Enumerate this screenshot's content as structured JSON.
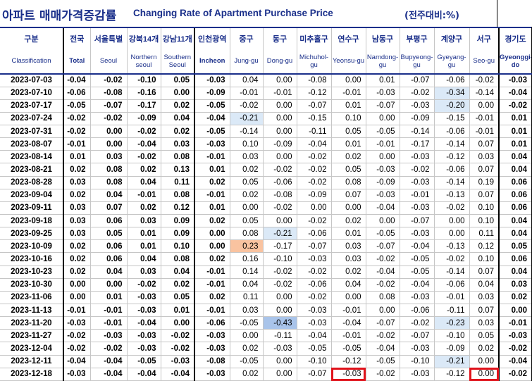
{
  "title": {
    "korean": "아파트 매매가격증감률",
    "english": "Changing Rate of Apartment Purchase Price",
    "unit": "(전주대비:%)"
  },
  "header": {
    "row1": [
      "구분",
      "전국",
      "서울특별",
      "강북14개",
      "강남11개",
      "인천광역",
      "중구",
      "동구",
      "미추홀구",
      "연수구",
      "남동구",
      "부평구",
      "계양구",
      "서구",
      "경기도"
    ],
    "row2": [
      "Classification",
      "Total",
      "Seoul",
      "Northern seoul",
      "Southern Seoul",
      "Incheon",
      "Jung-gu",
      "Dong-gu",
      "Michuhol-gu",
      "Yeonsu-gu",
      "Namdong-gu",
      "Bupyeong-gu",
      "Gyeyang-gu",
      "Seo-gu",
      "Gyeonggi-do"
    ]
  },
  "rows": [
    {
      "date": "2023-07-03",
      "values": [
        "-0.04",
        "-0.02",
        "-0.10",
        "0.05",
        "-0.03",
        "0.04",
        "0.00",
        "-0.08",
        "0.00",
        "0.01",
        "-0.07",
        "-0.06",
        "-0.02",
        "-0.03"
      ]
    },
    {
      "date": "2023-07-10",
      "values": [
        "-0.06",
        "-0.08",
        "-0.16",
        "0.00",
        "-0.09",
        "-0.01",
        "-0.01",
        "-0.12",
        "-0.01",
        "-0.03",
        "-0.02",
        "-0.34",
        "-0.14",
        "-0.04"
      ]
    },
    {
      "date": "2023-07-17",
      "values": [
        "-0.05",
        "-0.07",
        "-0.17",
        "0.02",
        "-0.05",
        "-0.02",
        "0.00",
        "-0.07",
        "0.01",
        "-0.07",
        "-0.03",
        "-0.20",
        "0.00",
        "-0.02"
      ]
    },
    {
      "date": "2023-07-24",
      "values": [
        "-0.02",
        "-0.02",
        "-0.09",
        "0.04",
        "-0.04",
        "-0.21",
        "0.00",
        "-0.15",
        "0.10",
        "0.00",
        "-0.09",
        "-0.15",
        "-0.01",
        "0.01"
      ]
    },
    {
      "date": "2023-07-31",
      "values": [
        "-0.02",
        "0.00",
        "-0.02",
        "0.02",
        "-0.05",
        "-0.14",
        "0.00",
        "-0.11",
        "0.05",
        "-0.05",
        "-0.14",
        "-0.06",
        "-0.01",
        "0.01"
      ]
    },
    {
      "date": "2023-08-07",
      "values": [
        "-0.01",
        "0.00",
        "-0.04",
        "0.03",
        "-0.03",
        "0.10",
        "-0.09",
        "-0.04",
        "0.01",
        "-0.01",
        "-0.17",
        "-0.14",
        "0.07",
        "0.01"
      ]
    },
    {
      "date": "2023-08-14",
      "values": [
        "0.01",
        "0.03",
        "-0.02",
        "0.08",
        "-0.01",
        "0.03",
        "0.00",
        "-0.02",
        "0.02",
        "0.00",
        "-0.03",
        "-0.12",
        "0.03",
        "0.04"
      ]
    },
    {
      "date": "2023-08-21",
      "values": [
        "0.02",
        "0.08",
        "0.02",
        "0.13",
        "0.01",
        "0.02",
        "-0.02",
        "-0.02",
        "0.05",
        "-0.03",
        "-0.02",
        "-0.06",
        "0.07",
        "0.04"
      ]
    },
    {
      "date": "2023-08-28",
      "values": [
        "0.03",
        "0.08",
        "0.04",
        "0.11",
        "0.02",
        "0.05",
        "-0.06",
        "-0.02",
        "0.08",
        "-0.09",
        "-0.03",
        "-0.14",
        "0.19",
        "0.06"
      ]
    },
    {
      "date": "2023-09-04",
      "values": [
        "0.02",
        "0.04",
        "-0.01",
        "0.08",
        "-0.01",
        "0.02",
        "-0.08",
        "-0.09",
        "0.07",
        "-0.03",
        "-0.01",
        "-0.13",
        "0.07",
        "0.06"
      ]
    },
    {
      "date": "2023-09-11",
      "values": [
        "0.03",
        "0.07",
        "0.02",
        "0.12",
        "0.01",
        "0.00",
        "-0.02",
        "0.00",
        "0.00",
        "-0.04",
        "-0.03",
        "-0.02",
        "0.10",
        "0.06"
      ]
    },
    {
      "date": "2023-09-18",
      "values": [
        "0.03",
        "0.06",
        "0.03",
        "0.09",
        "0.02",
        "0.05",
        "0.00",
        "-0.02",
        "0.02",
        "0.00",
        "-0.07",
        "0.00",
        "0.10",
        "0.04"
      ]
    },
    {
      "date": "2023-09-25",
      "values": [
        "0.03",
        "0.05",
        "0.01",
        "0.09",
        "0.00",
        "0.08",
        "-0.21",
        "-0.06",
        "0.01",
        "-0.05",
        "-0.03",
        "0.00",
        "0.11",
        "0.04"
      ]
    },
    {
      "date": "2023-10-09",
      "values": [
        "0.02",
        "0.06",
        "0.01",
        "0.10",
        "0.00",
        "0.23",
        "-0.17",
        "-0.07",
        "0.03",
        "-0.07",
        "-0.04",
        "-0.13",
        "0.12",
        "0.05"
      ]
    },
    {
      "date": "2023-10-16",
      "values": [
        "0.02",
        "0.06",
        "0.04",
        "0.08",
        "0.02",
        "0.16",
        "-0.10",
        "-0.03",
        "0.03",
        "-0.02",
        "-0.05",
        "-0.02",
        "0.10",
        "0.06"
      ]
    },
    {
      "date": "2023-10-23",
      "values": [
        "0.02",
        "0.04",
        "0.03",
        "0.04",
        "-0.01",
        "0.14",
        "-0.02",
        "-0.02",
        "0.02",
        "-0.04",
        "-0.05",
        "-0.14",
        "0.07",
        "0.04"
      ]
    },
    {
      "date": "2023-10-30",
      "values": [
        "0.00",
        "0.00",
        "-0.02",
        "0.02",
        "-0.01",
        "0.04",
        "-0.02",
        "-0.06",
        "0.04",
        "-0.02",
        "-0.04",
        "-0.06",
        "0.04",
        "0.03"
      ]
    },
    {
      "date": "2023-11-06",
      "values": [
        "0.00",
        "0.01",
        "-0.03",
        "0.05",
        "0.02",
        "0.11",
        "0.00",
        "-0.02",
        "0.00",
        "0.08",
        "-0.03",
        "-0.01",
        "0.03",
        "0.02"
      ]
    },
    {
      "date": "2023-11-13",
      "values": [
        "-0.01",
        "-0.01",
        "-0.03",
        "0.01",
        "-0.01",
        "0.03",
        "0.00",
        "-0.03",
        "-0.01",
        "0.00",
        "-0.06",
        "-0.11",
        "0.07",
        "0.00"
      ]
    },
    {
      "date": "2023-11-20",
      "values": [
        "-0.03",
        "-0.01",
        "-0.04",
        "0.00",
        "-0.06",
        "-0.05",
        "-0.43",
        "-0.03",
        "-0.04",
        "-0.07",
        "-0.02",
        "-0.23",
        "0.03",
        "-0.01"
      ]
    },
    {
      "date": "2023-11-27",
      "values": [
        "-0.02",
        "-0.03",
        "-0.03",
        "-0.02",
        "-0.03",
        "0.00",
        "-0.11",
        "-0.04",
        "-0.01",
        "-0.02",
        "-0.07",
        "-0.10",
        "0.05",
        "-0.03"
      ]
    },
    {
      "date": "2023-12-04",
      "values": [
        "-0.02",
        "-0.02",
        "-0.03",
        "-0.02",
        "-0.03",
        "0.02",
        "-0.03",
        "-0.05",
        "-0.05",
        "-0.04",
        "-0.03",
        "-0.09",
        "0.02",
        "-0.02"
      ]
    },
    {
      "date": "2023-12-11",
      "values": [
        "-0.04",
        "-0.04",
        "-0.05",
        "-0.03",
        "-0.08",
        "-0.05",
        "0.00",
        "-0.10",
        "-0.12",
        "-0.05",
        "-0.10",
        "-0.21",
        "0.00",
        "-0.04"
      ]
    },
    {
      "date": "2023-12-18",
      "values": [
        "-0.03",
        "-0.04",
        "-0.04",
        "-0.04",
        "-0.03",
        "0.02",
        "0.00",
        "-0.07",
        "-0.03",
        "-0.02",
        "-0.03",
        "-0.12",
        "0.00",
        "-0.02"
      ]
    }
  ],
  "highlights": {
    "light_blue": "#dbe9f7",
    "mid_blue": "#a9c4ea",
    "orange": "#f9c3a0",
    "red_box": "#e0131b",
    "header_text": "#1a2f8a"
  }
}
